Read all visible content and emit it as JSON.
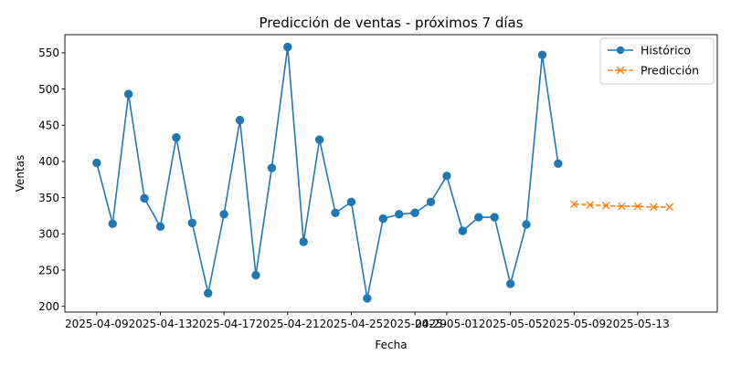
{
  "chart_data": {
    "type": "line",
    "title": "Predicción de ventas - próximos 7 días",
    "xlabel": "Fecha",
    "ylabel": "Ventas",
    "xlim": [
      "2025-04-07",
      "2025-05-18"
    ],
    "ylim": [
      192,
      575
    ],
    "x_ticks": [
      "2025-04-09",
      "2025-04-13",
      "2025-04-17",
      "2025-04-21",
      "2025-04-25",
      "2025-04-29",
      "2025-05-01",
      "2025-05-05",
      "2025-05-09",
      "2025-05-13"
    ],
    "y_ticks": [
      200,
      250,
      300,
      350,
      400,
      450,
      500,
      550
    ],
    "grid": false,
    "legend": "top-right",
    "series": [
      {
        "name": "Histórico",
        "color": "#1f77b4",
        "marker": "circle",
        "line_style": "solid",
        "x": [
          "2025-04-09",
          "2025-04-10",
          "2025-04-11",
          "2025-04-12",
          "2025-04-13",
          "2025-04-14",
          "2025-04-15",
          "2025-04-16",
          "2025-04-17",
          "2025-04-18",
          "2025-04-19",
          "2025-04-20",
          "2025-04-21",
          "2025-04-22",
          "2025-04-23",
          "2025-04-24",
          "2025-04-25",
          "2025-04-26",
          "2025-04-27",
          "2025-04-28",
          "2025-04-29",
          "2025-04-30",
          "2025-05-01",
          "2025-05-02",
          "2025-05-03",
          "2025-05-04",
          "2025-05-05",
          "2025-05-06",
          "2025-05-07",
          "2025-05-08"
        ],
        "values": [
          398,
          314,
          493,
          349,
          310,
          433,
          315,
          218,
          327,
          457,
          243,
          391,
          558,
          289,
          430,
          329,
          344,
          211,
          321,
          327,
          329,
          344,
          380,
          304,
          323,
          323,
          231,
          313,
          547,
          397
        ]
      },
      {
        "name": "Predicción",
        "color": "#ff7f0e",
        "marker": "x",
        "line_style": "dashed",
        "x": [
          "2025-05-09",
          "2025-05-10",
          "2025-05-11",
          "2025-05-12",
          "2025-05-13",
          "2025-05-14",
          "2025-05-15"
        ],
        "values": [
          341,
          340,
          339,
          338,
          338,
          337,
          337
        ]
      }
    ]
  }
}
